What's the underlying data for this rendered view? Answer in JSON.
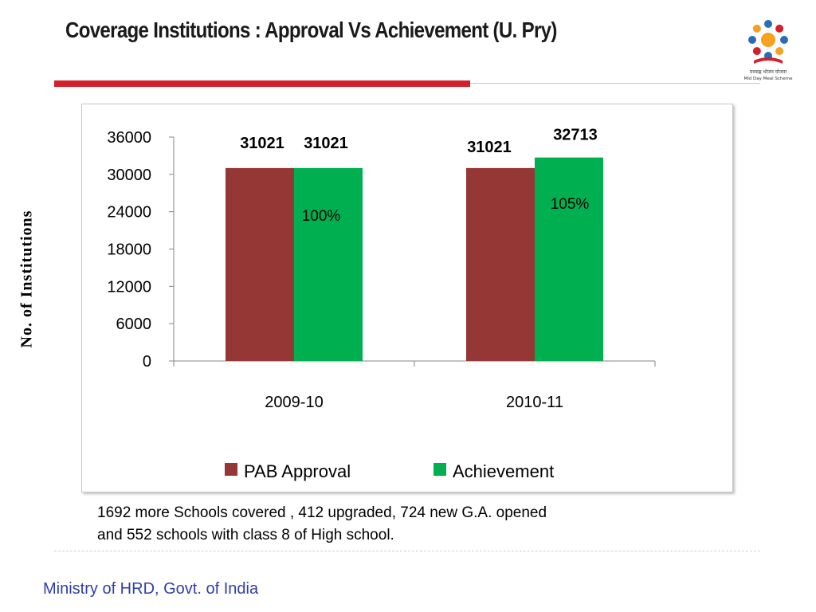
{
  "slide": {
    "title": "Coverage Institutions : Approval Vs Achievement (U. Pry)",
    "note_line1": "1692 more Schools  covered , 412 upgraded, 724 new G.A. opened",
    "note_line2": "and 552  schools with class 8  of High school.",
    "footer": "Ministry of HRD, Govt. of India",
    "logo": {
      "icon": "mid-day-meal-logo",
      "caption_hindi": "मध्याह्न भोजन योजना",
      "caption_english": "Mid Day Meal Scheme"
    }
  },
  "chart_data": {
    "type": "bar",
    "categories": [
      "2009-10",
      "2010-11"
    ],
    "series": [
      {
        "name": "PAB Approval",
        "values": [
          31021,
          31021
        ],
        "color": "#953735"
      },
      {
        "name": "Achievement",
        "values": [
          31021,
          32713
        ],
        "color": "#00b050"
      }
    ],
    "percent_labels": [
      "100%",
      "105%"
    ],
    "title": "",
    "xlabel": "",
    "ylabel": "No. of Institutions",
    "ylim": [
      0,
      36000
    ],
    "yticks": [
      0,
      6000,
      12000,
      18000,
      24000,
      30000,
      36000
    ],
    "grid": false,
    "legend": "bottom"
  }
}
